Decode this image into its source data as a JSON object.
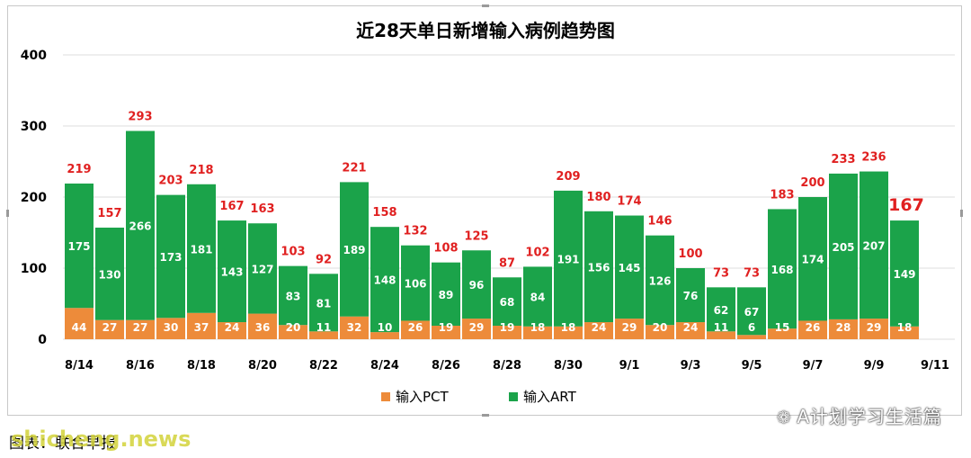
{
  "chart_data": {
    "type": "bar",
    "stacked": true,
    "title": "近28天单日新增输入病例趋势图",
    "categories": [
      "8/14",
      "8/15",
      "8/16",
      "8/17",
      "8/18",
      "8/19",
      "8/20",
      "8/21",
      "8/22",
      "8/23",
      "8/24",
      "8/25",
      "8/26",
      "8/27",
      "8/28",
      "8/29",
      "8/30",
      "8/31",
      "9/1",
      "9/2",
      "9/3",
      "9/4",
      "9/5",
      "9/6",
      "9/7",
      "9/8",
      "9/9",
      "9/10"
    ],
    "x_tick_labels": [
      "8/14",
      "8/16",
      "8/18",
      "8/20",
      "8/22",
      "8/24",
      "8/26",
      "8/28",
      "8/30",
      "9/1",
      "9/3",
      "9/5",
      "9/7",
      "9/9",
      "9/11"
    ],
    "series": [
      {
        "name": "输入PCT",
        "color": "#ed8b3a",
        "values": [
          44,
          27,
          27,
          30,
          37,
          24,
          36,
          20,
          11,
          32,
          10,
          26,
          19,
          29,
          19,
          18,
          18,
          24,
          29,
          20,
          24,
          11,
          6,
          15,
          26,
          28,
          29,
          18
        ]
      },
      {
        "name": "输入ART",
        "color": "#1ba34a",
        "values": [
          175,
          130,
          266,
          173,
          181,
          143,
          127,
          83,
          81,
          189,
          148,
          106,
          89,
          96,
          68,
          84,
          191,
          156,
          145,
          126,
          76,
          62,
          67,
          168,
          174,
          205,
          207,
          149
        ]
      }
    ],
    "totals": [
      219,
      157,
      293,
      203,
      218,
      167,
      163,
      103,
      92,
      221,
      158,
      132,
      108,
      125,
      87,
      102,
      209,
      180,
      174,
      146,
      100,
      73,
      73,
      183,
      200,
      233,
      236,
      167
    ],
    "total_label_color": "#e02020",
    "y_ticks": [
      0,
      100,
      200,
      300,
      400
    ],
    "ylim": [
      0,
      400
    ],
    "grid": true,
    "legend_position": "bottom"
  },
  "watermark": "A计划学习生活篇",
  "source_credit": "图表：联合早报",
  "site_mark": "shicheng.news"
}
